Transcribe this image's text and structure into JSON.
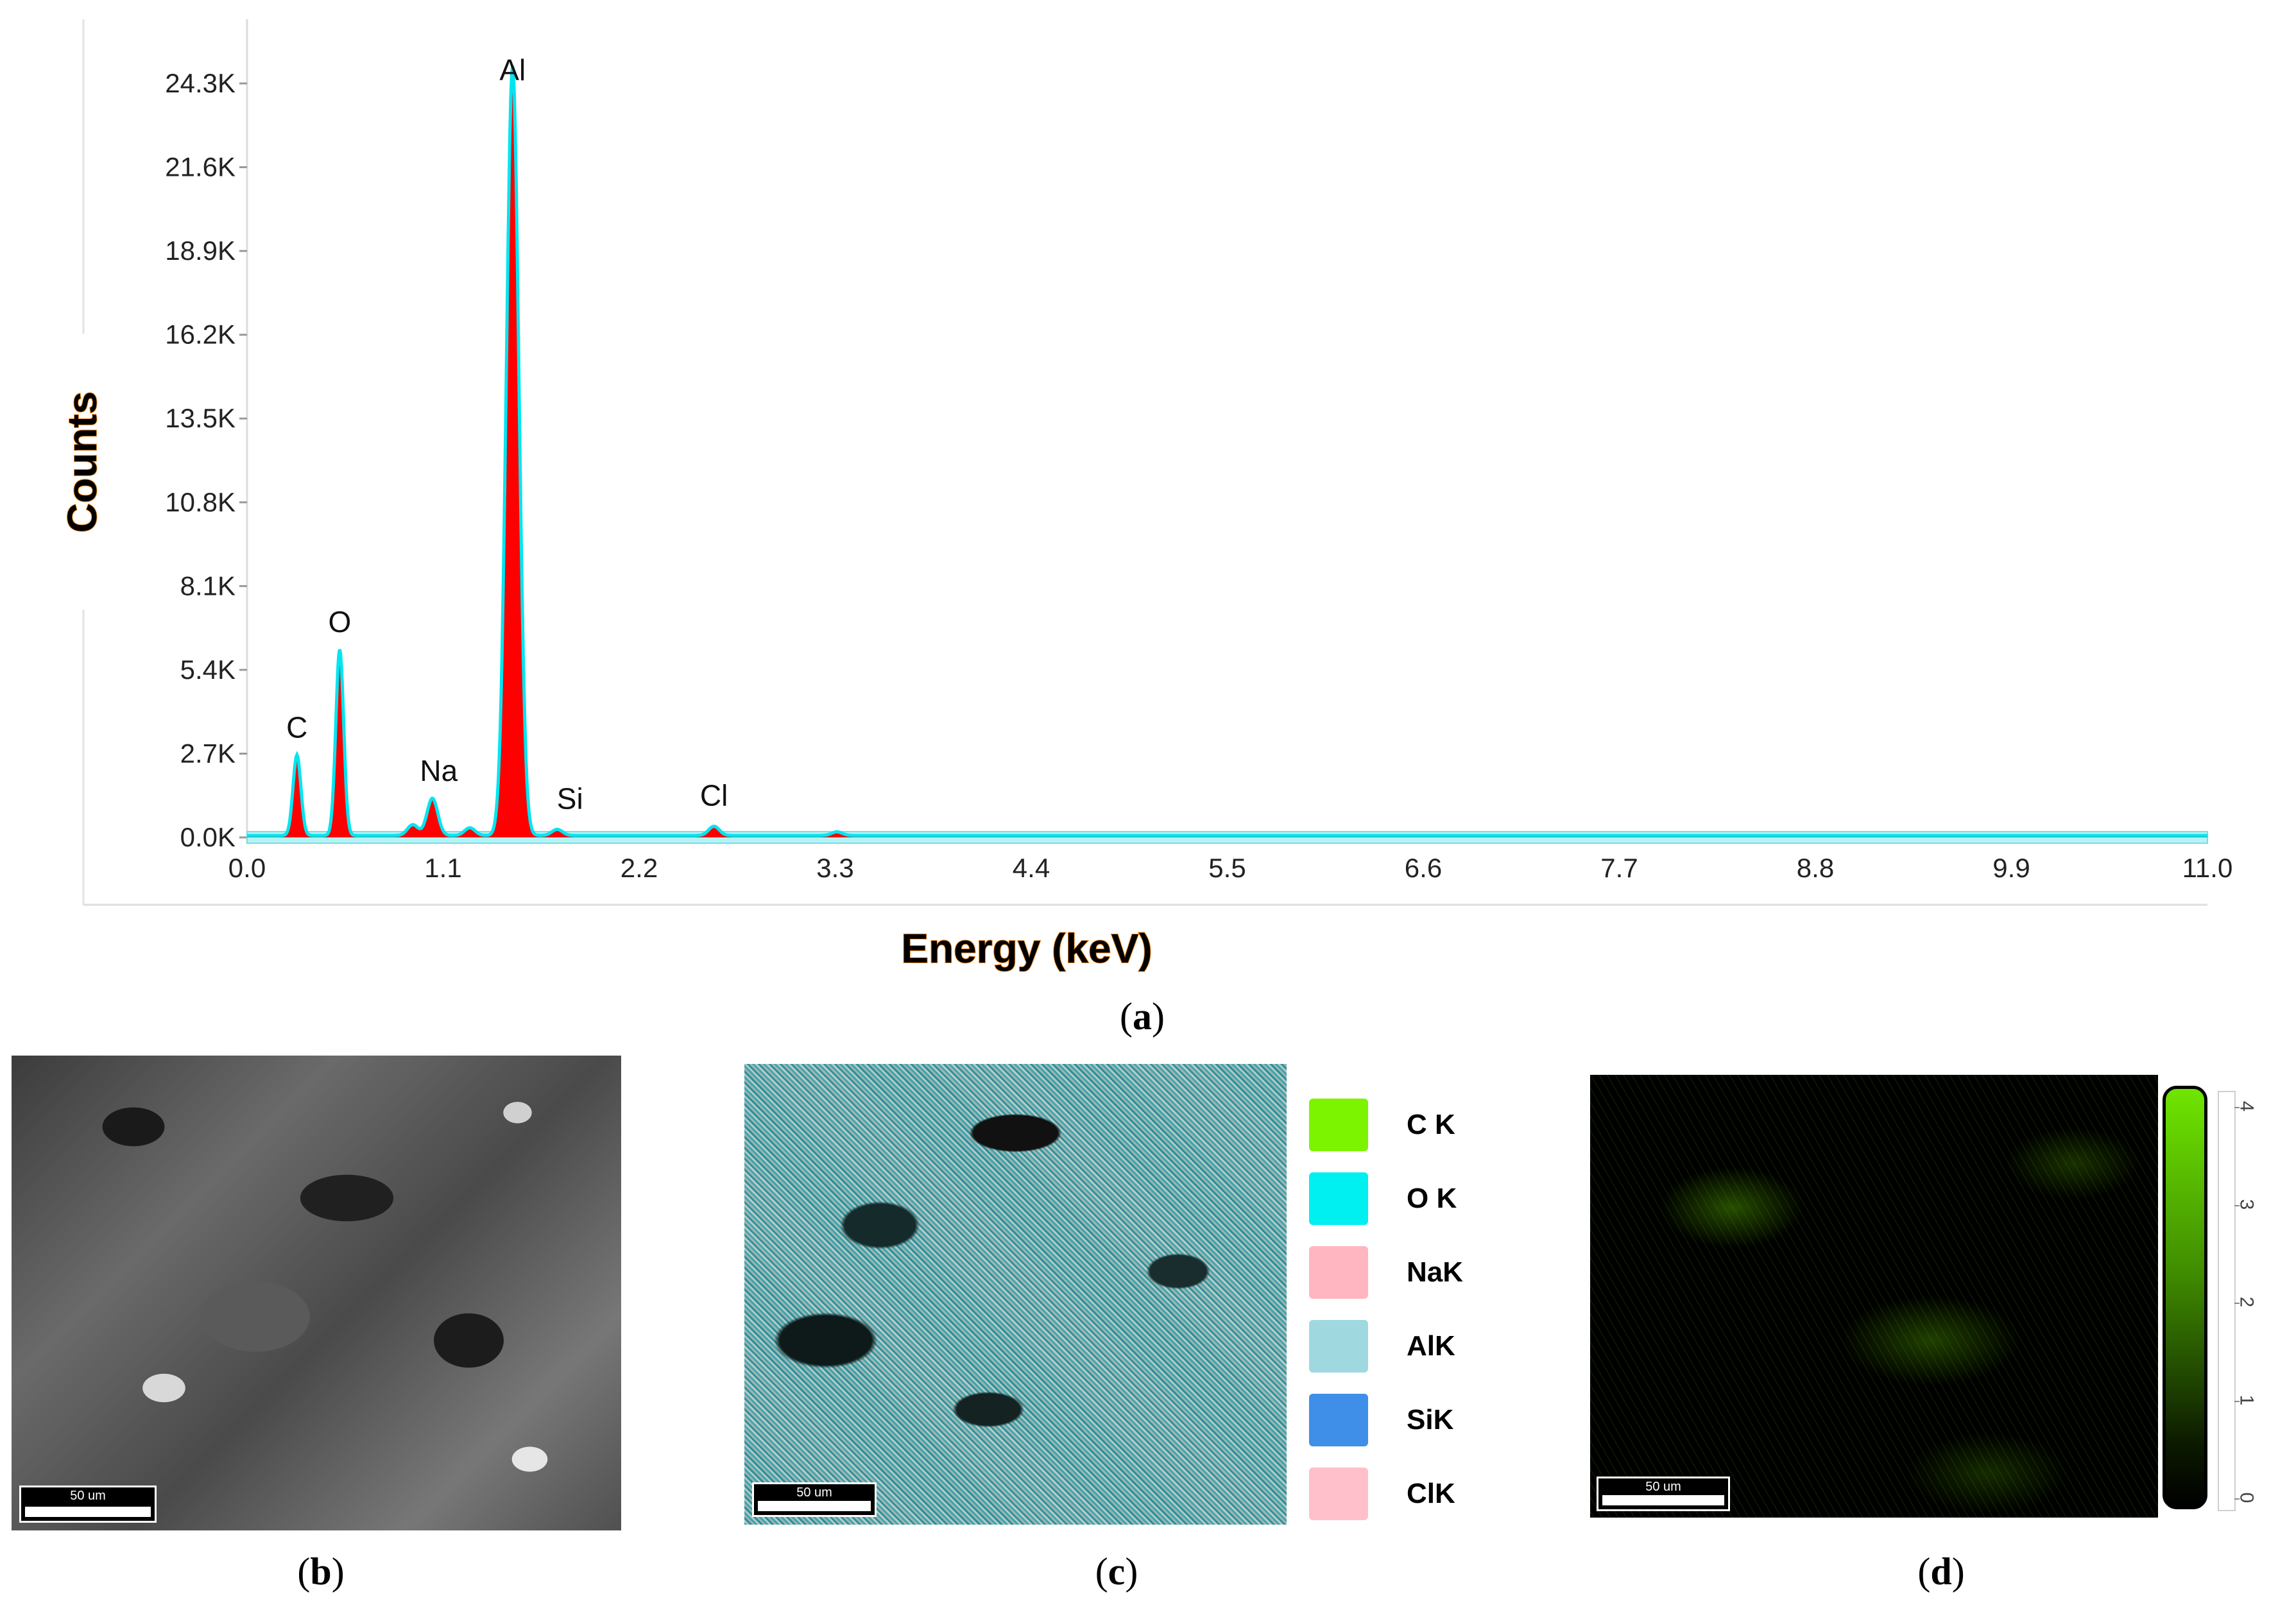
{
  "chart_data": {
    "type": "line",
    "xlabel": "Energy (keV)",
    "ylabel": "Counts",
    "xlim": [
      0.0,
      11.0
    ],
    "ylim": [
      0,
      24300
    ],
    "x_ticks": [
      "0.0",
      "1.1",
      "2.2",
      "3.3",
      "4.4",
      "5.5",
      "6.6",
      "7.7",
      "8.8",
      "9.9",
      "11.0"
    ],
    "y_ticks": [
      "0.0K",
      "2.7K",
      "5.4K",
      "8.1K",
      "10.8K",
      "13.5K",
      "16.2K",
      "18.9K",
      "21.6K",
      "24.3K"
    ],
    "peaks": [
      {
        "label": "C",
        "x": 0.28,
        "y": 2600
      },
      {
        "label": "O",
        "x": 0.52,
        "y": 6000
      },
      {
        "label": "Na",
        "x": 1.04,
        "y": 1200
      },
      {
        "label": "Al",
        "x": 1.49,
        "y": 24800
      },
      {
        "label": "Si",
        "x": 1.74,
        "y": 200
      },
      {
        "label": "Cl",
        "x": 2.62,
        "y": 300
      }
    ],
    "minor_peaks": [
      {
        "x": 0.93,
        "y": 350
      },
      {
        "x": 1.25,
        "y": 250
      },
      {
        "x": 3.31,
        "y": 120
      }
    ],
    "colors": {
      "fill": "#ff0000",
      "line": "#00e5f0",
      "axis_label": "#f28c1e"
    }
  },
  "panels": {
    "a": "a",
    "b": "b",
    "c": "c",
    "d": "d"
  },
  "scalebars": {
    "b": "50 um",
    "c": "50 um",
    "d": "50 um"
  },
  "legend": [
    {
      "label": "C K",
      "color": "#7cf400"
    },
    {
      "label": "O K",
      "color": "#00f0f2"
    },
    {
      "label": "NaK",
      "color": "#ffb6c1"
    },
    {
      "label": "AlK",
      "color": "#9fd9df"
    },
    {
      "label": "SiK",
      "color": "#3f8ee8"
    },
    {
      "label": "ClK",
      "color": "#ffc0cb"
    }
  ],
  "colorbar": {
    "ticks": [
      "4",
      "3",
      "2",
      "1",
      "0"
    ],
    "color_top": "#6fe600",
    "color_bottom": "#000000"
  }
}
